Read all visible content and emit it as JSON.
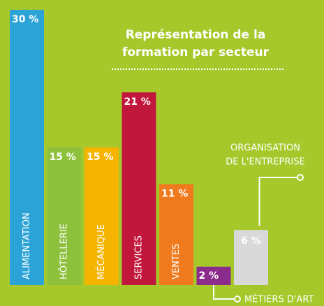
{
  "chart_data": {
    "type": "bar",
    "title": [
      "Représentation de la",
      "formation par secteur"
    ],
    "categories": [
      "ALIMENTATION",
      "HÔTELLERIE",
      "MÉCANIQUE",
      "SERVICES",
      "VENTES",
      "MÉTIERS D'ART",
      "ORGANISATION DE L'ENTREPRISE"
    ],
    "category_lines": [
      null,
      null,
      null,
      null,
      null,
      null,
      [
        "ORGANISATION",
        "DE L'ENTREPRISE"
      ]
    ],
    "values": [
      30,
      15,
      15,
      21,
      11,
      2,
      6
    ],
    "value_labels": [
      "30 %",
      "15 %",
      "15 %",
      "21 %",
      "11 %",
      "2 %",
      "6 %"
    ],
    "colors": [
      "#2ba3d6",
      "#8dc13c",
      "#f4b400",
      "#c2173d",
      "#f07a1e",
      "#8b2b8c",
      "#d9d9d9"
    ]
  }
}
